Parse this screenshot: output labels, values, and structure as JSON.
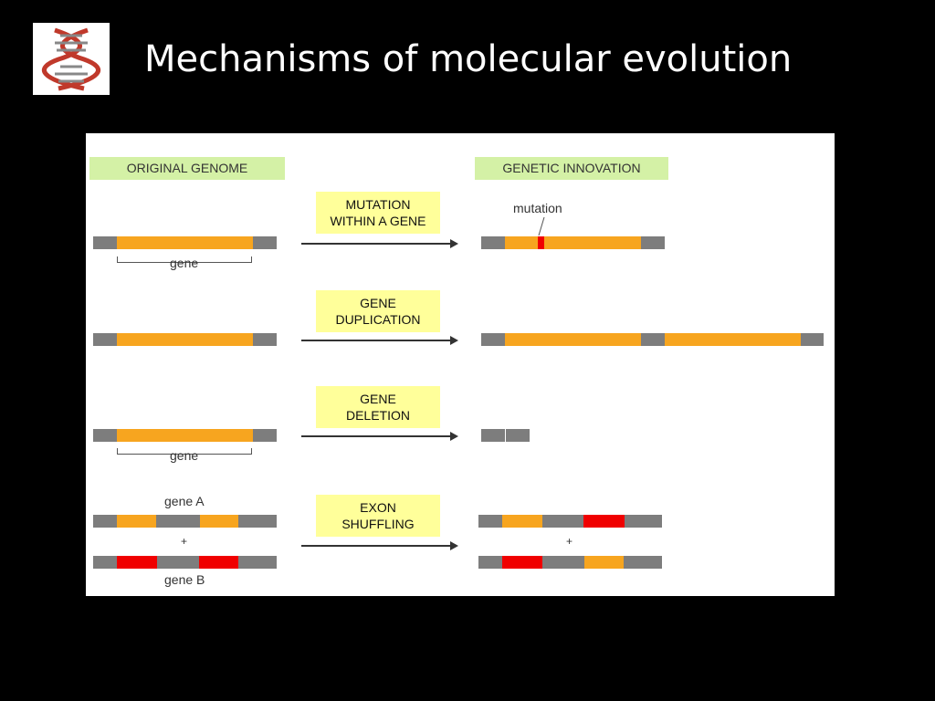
{
  "slide": {
    "title": "Mechanisms of molecular evolution",
    "logo_icon": "dna-helix-icon"
  },
  "diagram": {
    "header_left": "ORIGINAL GENOME",
    "header_right": "GENETIC INNOVATION",
    "mechanisms": [
      {
        "label": "MUTATION\nWITHIN A GENE"
      },
      {
        "label": "GENE\nDUPLICATION"
      },
      {
        "label": "GENE\nDELETION"
      },
      {
        "label": "EXON\nSHUFFLING"
      }
    ],
    "annotations": {
      "gene_1": "gene",
      "mutation": "mutation",
      "gene_3": "gene",
      "gene_a": "gene A",
      "plus_left": "+",
      "gene_b": "gene B",
      "plus_right": "+"
    },
    "colors": {
      "noncoding": "#7d7d7d",
      "exon_a": "#f7a51f",
      "exon_b": "#f00000",
      "header_bg": "#d4f1a6",
      "label_bg": "#ffff9a"
    }
  }
}
